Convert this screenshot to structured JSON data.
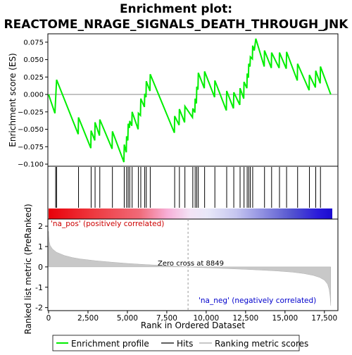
{
  "chart_data": {
    "type": "line",
    "title": "Enrichment plot:",
    "subtitle": "REACTOME_NRAGE_SIGNALS_DEATH_THROUGH_JNK",
    "xlabel": "Rank in Ordered Dataset",
    "ylabel_top": "Enrichment score (ES)",
    "ylabel_bottom": "Ranked list metric (PreRanked)",
    "x_ticks": [
      0,
      2500,
      5000,
      7500,
      10000,
      12500,
      15000,
      17500
    ],
    "x_tick_labels": [
      "0",
      "2,500",
      "5,000",
      "7,500",
      "10,000",
      "12,500",
      "15,000",
      "17,500"
    ],
    "es_y_ticks": [
      -0.1,
      -0.075,
      -0.05,
      -0.025,
      0.0,
      0.025,
      0.05,
      0.075
    ],
    "es_y_tick_labels": [
      "−0.100",
      "−0.075",
      "−0.050",
      "−0.025",
      "0.000",
      "0.025",
      "0.050",
      "0.075"
    ],
    "metric_y_ticks": [
      -2,
      -1,
      0,
      1,
      2
    ],
    "metric_y_tick_labels": [
      "-2",
      "-1",
      "0",
      "1",
      "2"
    ],
    "xlim": [
      0,
      18000
    ],
    "es_ylim": [
      -0.103,
      0.087
    ],
    "metric_ylim": [
      -2.15,
      2.35
    ],
    "hits": [
      450,
      510,
      1900,
      2700,
      2950,
      3250,
      4050,
      4800,
      4950,
      5050,
      5150,
      5300,
      5700,
      5850,
      6100,
      6200,
      6450,
      8000,
      8300,
      8650,
      9150,
      9300,
      9400,
      9500,
      9900,
      10550,
      11300,
      11750,
      12150,
      12400,
      12600,
      12700,
      12800,
      12950,
      13700,
      14150,
      14650,
      15100,
      15800,
      16550,
      16950,
      17250
    ],
    "es_points": [
      [
        0,
        0.0
      ],
      [
        400,
        -0.027
      ],
      [
        510,
        0.021
      ],
      [
        1880,
        -0.057
      ],
      [
        1900,
        -0.033
      ],
      [
        2680,
        -0.077
      ],
      [
        2700,
        -0.052
      ],
      [
        2930,
        -0.066
      ],
      [
        2950,
        -0.04
      ],
      [
        3230,
        -0.059
      ],
      [
        3250,
        -0.036
      ],
      [
        4030,
        -0.078
      ],
      [
        4050,
        -0.053
      ],
      [
        4780,
        -0.097
      ],
      [
        4800,
        -0.072
      ],
      [
        4930,
        -0.083
      ],
      [
        4950,
        -0.06
      ],
      [
        5030,
        -0.066
      ],
      [
        5050,
        -0.042
      ],
      [
        5130,
        -0.048
      ],
      [
        5150,
        -0.038
      ],
      [
        5280,
        -0.045
      ],
      [
        5300,
        -0.025
      ],
      [
        5680,
        -0.05
      ],
      [
        5700,
        -0.027
      ],
      [
        5830,
        -0.03
      ],
      [
        5850,
        -0.006
      ],
      [
        6080,
        -0.018
      ],
      [
        6100,
        0.001
      ],
      [
        6180,
        -0.004
      ],
      [
        6200,
        0.019
      ],
      [
        6430,
        0.005
      ],
      [
        6450,
        0.029
      ],
      [
        7980,
        -0.055
      ],
      [
        8000,
        -0.031
      ],
      [
        8280,
        -0.044
      ],
      [
        8300,
        -0.021
      ],
      [
        8630,
        -0.04
      ],
      [
        8650,
        -0.017
      ],
      [
        9130,
        -0.033
      ],
      [
        9150,
        -0.02
      ],
      [
        9280,
        -0.026
      ],
      [
        9300,
        -0.006
      ],
      [
        9380,
        -0.013
      ],
      [
        9400,
        0.011
      ],
      [
        9480,
        0.007
      ],
      [
        9500,
        0.031
      ],
      [
        9880,
        0.009
      ],
      [
        9900,
        0.033
      ],
      [
        10530,
        -0.004
      ],
      [
        10550,
        0.02
      ],
      [
        11280,
        -0.023
      ],
      [
        11300,
        0.005
      ],
      [
        11730,
        -0.02
      ],
      [
        11750,
        0.003
      ],
      [
        12130,
        -0.015
      ],
      [
        12150,
        0.009
      ],
      [
        12380,
        -0.006
      ],
      [
        12400,
        0.018
      ],
      [
        12580,
        0.009
      ],
      [
        12600,
        0.03
      ],
      [
        12680,
        0.024
      ],
      [
        12700,
        0.044
      ],
      [
        12780,
        0.04
      ],
      [
        12800,
        0.054
      ],
      [
        12930,
        0.051
      ],
      [
        12950,
        0.07
      ],
      [
        13050,
        0.063
      ],
      [
        13150,
        0.08
      ],
      [
        13680,
        0.04
      ],
      [
        13700,
        0.063
      ],
      [
        14130,
        0.038
      ],
      [
        14150,
        0.06
      ],
      [
        14630,
        0.038
      ],
      [
        14650,
        0.06
      ],
      [
        15080,
        0.037
      ],
      [
        15100,
        0.061
      ],
      [
        15780,
        0.02
      ],
      [
        15800,
        0.044
      ],
      [
        16530,
        0.006
      ],
      [
        16550,
        0.028
      ],
      [
        16930,
        0.01
      ],
      [
        16950,
        0.034
      ],
      [
        17230,
        0.016
      ],
      [
        17250,
        0.04
      ],
      [
        17900,
        0.0
      ]
    ],
    "metric_curve": [
      [
        0,
        1.75
      ],
      [
        40,
        1.25
      ],
      [
        100,
        1.05
      ],
      [
        250,
        0.88
      ],
      [
        500,
        0.72
      ],
      [
        1000,
        0.56
      ],
      [
        1500,
        0.46
      ],
      [
        2000,
        0.39
      ],
      [
        3000,
        0.3
      ],
      [
        4000,
        0.23
      ],
      [
        5000,
        0.17
      ],
      [
        6000,
        0.12
      ],
      [
        7000,
        0.08
      ],
      [
        8000,
        0.03
      ],
      [
        8849,
        0.0
      ],
      [
        9500,
        -0.03
      ],
      [
        10500,
        -0.06
      ],
      [
        11500,
        -0.09
      ],
      [
        12500,
        -0.12
      ],
      [
        13500,
        -0.16
      ],
      [
        14500,
        -0.2
      ],
      [
        15500,
        -0.26
      ],
      [
        16200,
        -0.33
      ],
      [
        16800,
        -0.42
      ],
      [
        17200,
        -0.52
      ],
      [
        17500,
        -0.65
      ],
      [
        17700,
        -0.85
      ],
      [
        17800,
        -1.1
      ],
      [
        17860,
        -1.45
      ],
      [
        17900,
        -1.9
      ]
    ],
    "zero_cross_rank": 8849,
    "zero_cross_label": "Zero cross at 8849",
    "pos_label": "'na_pos' (positively correlated)",
    "neg_label": "'na_neg' (negatively correlated)",
    "legend": [
      "Enrichment profile",
      "Hits",
      "Ranking metric scores"
    ],
    "legend_placement": "bottom",
    "colors": {
      "es_line": "#00ee00",
      "hits": "#000000",
      "metric_fill": "#c8c8c8",
      "pos_label": "#cc0000",
      "neg_label": "#0000cc",
      "zero_cross_line": "#999999",
      "heat_red": "#e8000a",
      "heat_blue": "#1a0ad0"
    }
  }
}
